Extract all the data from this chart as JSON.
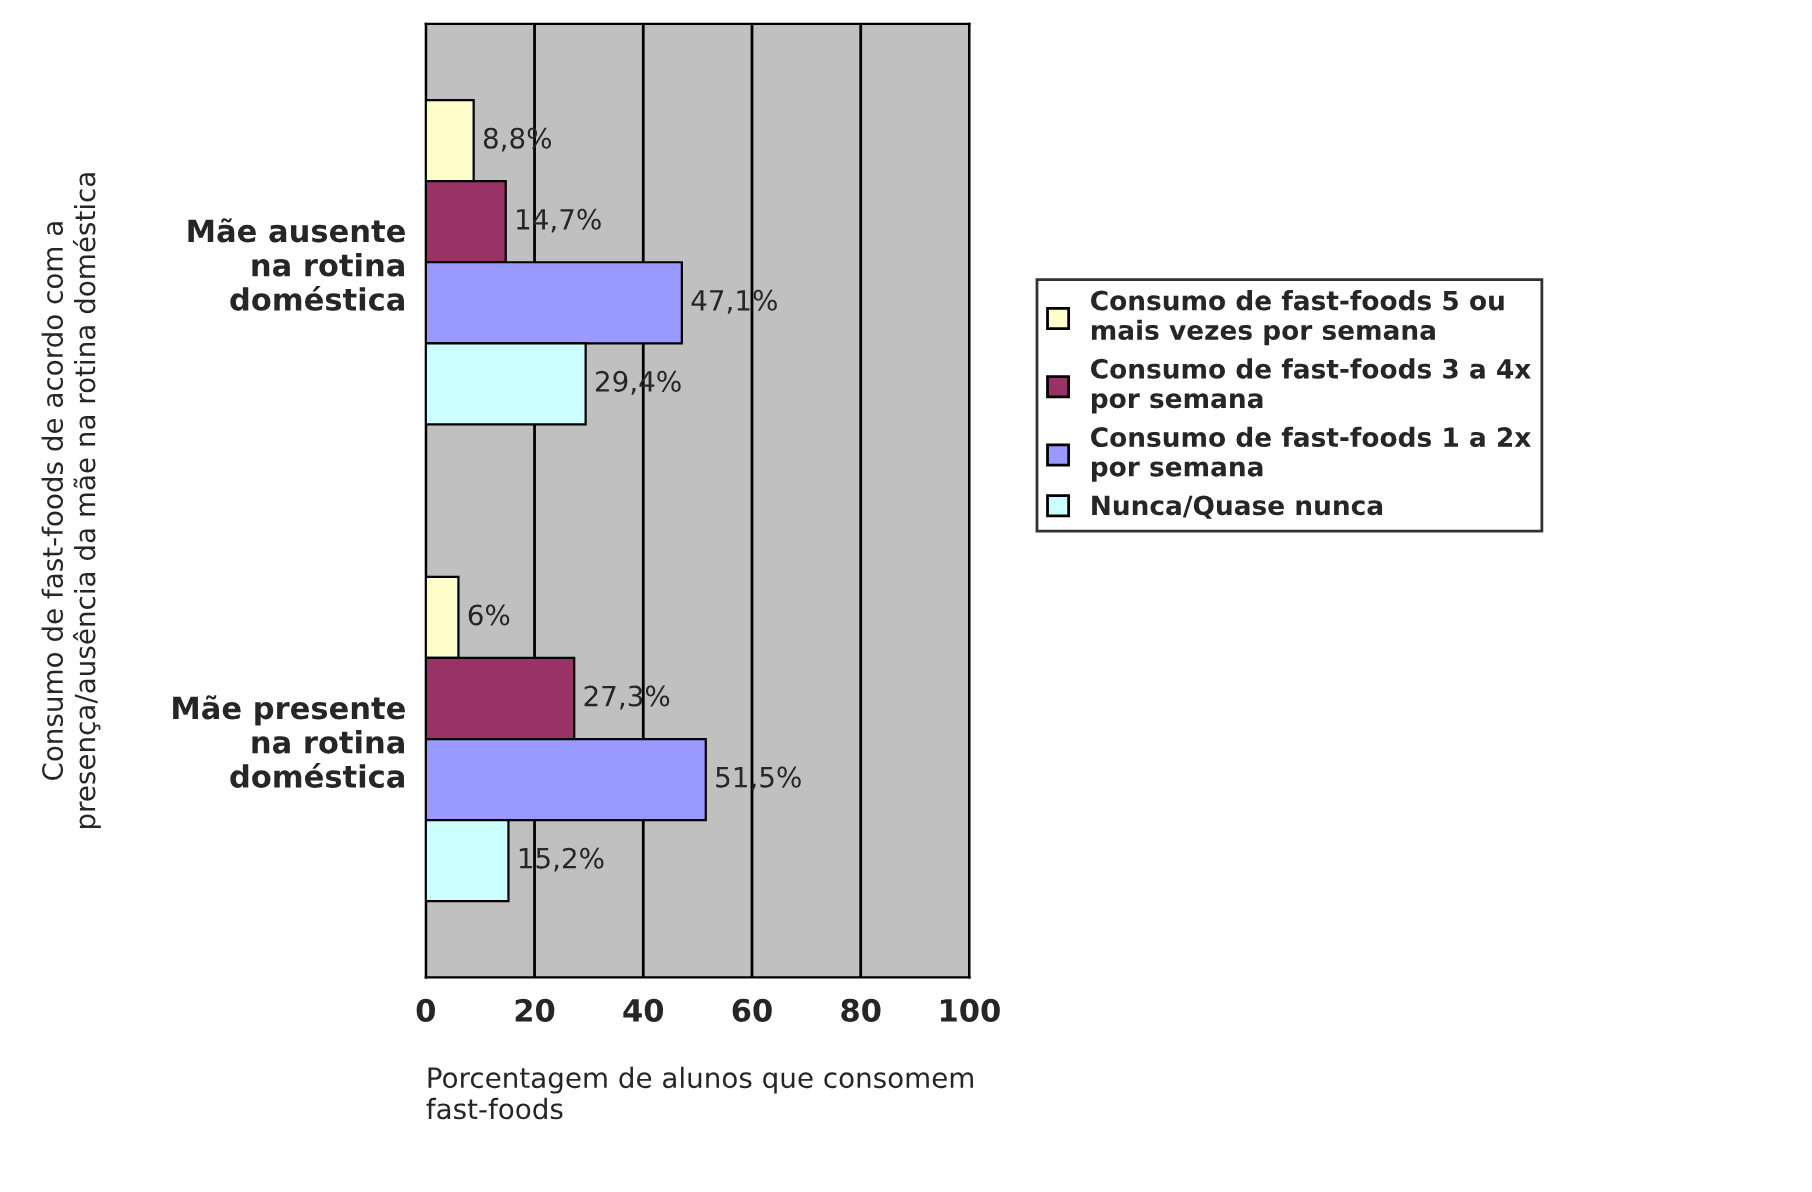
{
  "chart_data": {
    "type": "bar",
    "orientation": "horizontal",
    "categories": [
      "Mãe ausente\nna rotina\ndoméstica",
      "Mãe presente\nna rotina\ndoméstica"
    ],
    "series": [
      {
        "name": "Consumo de fast-foods 5 ou\nmais vezes por semana",
        "color": "#ffffcc",
        "values": [
          8.8,
          6
        ],
        "value_labels": [
          "8,8%",
          "6%"
        ]
      },
      {
        "name": "Consumo de fast-foods 3 a 4x\npor semana",
        "color": "#993366",
        "values": [
          14.7,
          27.3
        ],
        "value_labels": [
          "14,7%",
          "27,3%"
        ]
      },
      {
        "name": "Consumo de fast-foods 1 a 2x\npor semana",
        "color": "#9999ff",
        "values": [
          47.1,
          51.5
        ],
        "value_labels": [
          "47,1%",
          "51,5%"
        ]
      },
      {
        "name": "Nunca/Quase nunca",
        "color": "#ccffff",
        "values": [
          29.4,
          15.2
        ],
        "value_labels": [
          "29,4%",
          "15,2%"
        ]
      }
    ],
    "xlim": [
      0,
      100
    ],
    "xticks": [
      0,
      20,
      40,
      60,
      80,
      100
    ],
    "grid": "x",
    "legend": "right",
    "xlabel": "Porcentagem de alunos que consomem\nfast-foods",
    "ylabel": "Consumo de fast-foods de acordo com a\npresença/ausência da mãe na rotina doméstica"
  }
}
